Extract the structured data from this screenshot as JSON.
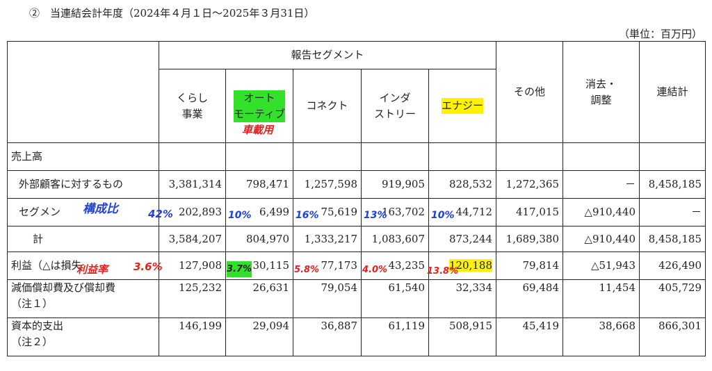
{
  "title": "②　当連結会計年度（2024年４月１日～2025年３月31日）",
  "unit": "（単位：百万円）",
  "header": {
    "segment_group": "報告セグメント",
    "columns": [
      "くらし\n事業",
      "オート\nモーティブ",
      "コネクト",
      "インダ\nストリー",
      "エナジー",
      "その他",
      "消去・\n調整",
      "連結計"
    ]
  },
  "rows": {
    "sales_label": "売上高",
    "external": {
      "label": "外部顧客に対するもの",
      "values": [
        "3,381,314",
        "798,471",
        "1,257,598",
        "919,905",
        "828,532",
        "1,272,365",
        "－",
        "8,458,185"
      ]
    },
    "segment": {
      "label": "セグメン",
      "values": [
        "202,893",
        "6,499",
        "75,619",
        "163,702",
        "44,712",
        "417,015",
        "△910,440",
        "－"
      ]
    },
    "total": {
      "label": "計",
      "values": [
        "3,584,207",
        "804,970",
        "1,333,217",
        "1,083,607",
        "873,244",
        "1,689,380",
        "△910,440",
        "8,458,185"
      ]
    },
    "profit": {
      "label": "利益（△は損失",
      "values": [
        "127,908",
        "30,115",
        "77,173",
        "43,235",
        "120,188",
        "79,814",
        "△51,943",
        "426,490"
      ]
    },
    "depreciation": {
      "label_line1": "減価償却費及び償却費",
      "label_line2": "（注１）",
      "values": [
        "125,232",
        "26,631",
        "79,054",
        "61,540",
        "32,334",
        "69,484",
        "11,454",
        "405,729"
      ]
    },
    "capex": {
      "label_line1": "資本的支出",
      "label_line2": "（注２）",
      "values": [
        "146,199",
        "29,094",
        "36,887",
        "61,119",
        "508,915",
        "45,419",
        "38,668",
        "866,301"
      ]
    }
  },
  "annotations": {
    "auto_note": "車載用",
    "sales_ratio_label": "構成比",
    "sales_ratios": [
      "42%",
      "10%",
      "16%",
      "13%",
      "10%"
    ],
    "profit_ratio_label": "利益率",
    "profit_ratios": [
      "3.6%",
      "3.7%",
      "5.8%",
      "4.0%",
      "13.8%"
    ]
  },
  "colors": {
    "highlight_green": "#33e02a",
    "highlight_yellow": "#fff200",
    "ink_red": "#e8201c",
    "ink_blue": "#1f3fe0"
  }
}
